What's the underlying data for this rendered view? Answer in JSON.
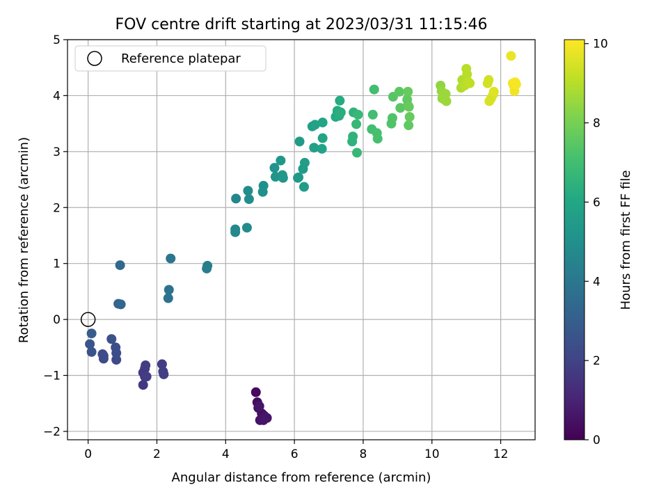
{
  "chart_data": {
    "type": "scatter",
    "title": "FOV centre drift starting at 2023/03/31 11:15:46",
    "xlabel": "Angular distance from reference (arcmin)",
    "ylabel": "Rotation from reference (arcmin)",
    "xlim": [
      -0.6,
      13.0
    ],
    "ylim": [
      -2.15,
      5.0
    ],
    "xticks": [
      0,
      2,
      4,
      6,
      8,
      10,
      12
    ],
    "yticks": [
      -2,
      -1,
      0,
      1,
      2,
      3,
      4,
      5
    ],
    "grid": true,
    "legend": {
      "placement": "top-left",
      "entries": [
        "Reference platepar"
      ]
    },
    "reference_point": {
      "x": 0,
      "y": 0,
      "label": "Reference platepar"
    },
    "colorbar": {
      "label": "Hours from first FF file",
      "min": 0,
      "max": 10.1,
      "ticks": [
        0,
        2,
        4,
        6,
        8,
        10
      ],
      "colormap": "viridis"
    },
    "points": [
      {
        "x": 4.88,
        "y": -1.3,
        "c": 0.3
      },
      {
        "x": 4.92,
        "y": -1.48,
        "c": 0.35
      },
      {
        "x": 4.95,
        "y": -1.58,
        "c": 0.4
      },
      {
        "x": 5.05,
        "y": -1.68,
        "c": 0.4
      },
      {
        "x": 5.12,
        "y": -1.72,
        "c": 0.45
      },
      {
        "x": 5.2,
        "y": -1.76,
        "c": 0.5
      },
      {
        "x": 5.0,
        "y": -1.8,
        "c": 0.5
      },
      {
        "x": 5.1,
        "y": -1.8,
        "c": 0.55
      },
      {
        "x": 5.15,
        "y": -1.75,
        "c": 0.6
      },
      {
        "x": 4.98,
        "y": -1.55,
        "c": 0.6
      },
      {
        "x": 1.6,
        "y": -1.17,
        "c": 1.6
      },
      {
        "x": 1.65,
        "y": -1.02,
        "c": 1.6
      },
      {
        "x": 1.6,
        "y": -0.95,
        "c": 1.7
      },
      {
        "x": 1.65,
        "y": -0.88,
        "c": 1.7
      },
      {
        "x": 1.67,
        "y": -0.82,
        "c": 1.8
      },
      {
        "x": 1.7,
        "y": -1.02,
        "c": 1.8
      },
      {
        "x": 2.15,
        "y": -0.8,
        "c": 1.8
      },
      {
        "x": 2.18,
        "y": -0.93,
        "c": 1.85
      },
      {
        "x": 2.2,
        "y": -0.98,
        "c": 1.85
      },
      {
        "x": 0.42,
        "y": -0.62,
        "c": 2.3
      },
      {
        "x": 0.45,
        "y": -0.7,
        "c": 2.3
      },
      {
        "x": 0.45,
        "y": -0.65,
        "c": 2.35
      },
      {
        "x": 0.82,
        "y": -0.72,
        "c": 2.3
      },
      {
        "x": 0.82,
        "y": -0.6,
        "c": 2.4
      },
      {
        "x": 0.8,
        "y": -0.5,
        "c": 2.4
      },
      {
        "x": 0.68,
        "y": -0.35,
        "c": 2.5
      },
      {
        "x": 0.1,
        "y": -0.58,
        "c": 2.6
      },
      {
        "x": 0.05,
        "y": -0.44,
        "c": 2.7
      },
      {
        "x": 0.1,
        "y": -0.25,
        "c": 2.9
      },
      {
        "x": 0.88,
        "y": 0.28,
        "c": 3.2
      },
      {
        "x": 0.95,
        "y": 0.27,
        "c": 3.3
      },
      {
        "x": 0.93,
        "y": 0.97,
        "c": 3.4
      },
      {
        "x": 2.33,
        "y": 0.38,
        "c": 3.8
      },
      {
        "x": 2.35,
        "y": 0.53,
        "c": 3.8
      },
      {
        "x": 2.4,
        "y": 1.09,
        "c": 3.9
      },
      {
        "x": 3.45,
        "y": 0.91,
        "c": 4.3
      },
      {
        "x": 3.47,
        "y": 0.96,
        "c": 4.3
      },
      {
        "x": 4.28,
        "y": 1.56,
        "c": 4.7
      },
      {
        "x": 4.28,
        "y": 1.61,
        "c": 4.7
      },
      {
        "x": 4.3,
        "y": 2.16,
        "c": 4.6
      },
      {
        "x": 4.62,
        "y": 1.64,
        "c": 4.8
      },
      {
        "x": 4.65,
        "y": 2.3,
        "c": 4.9
      },
      {
        "x": 4.68,
        "y": 2.15,
        "c": 4.9
      },
      {
        "x": 5.08,
        "y": 2.28,
        "c": 5.0
      },
      {
        "x": 5.1,
        "y": 2.39,
        "c": 5.0
      },
      {
        "x": 5.42,
        "y": 2.71,
        "c": 5.1
      },
      {
        "x": 5.45,
        "y": 2.55,
        "c": 5.2
      },
      {
        "x": 5.6,
        "y": 2.84,
        "c": 5.3
      },
      {
        "x": 5.65,
        "y": 2.58,
        "c": 5.3
      },
      {
        "x": 5.67,
        "y": 2.53,
        "c": 5.3
      },
      {
        "x": 6.12,
        "y": 2.54,
        "c": 5.4
      },
      {
        "x": 6.1,
        "y": 2.53,
        "c": 5.4
      },
      {
        "x": 6.15,
        "y": 3.18,
        "c": 5.5
      },
      {
        "x": 6.25,
        "y": 2.69,
        "c": 5.5
      },
      {
        "x": 6.28,
        "y": 2.37,
        "c": 5.5
      },
      {
        "x": 6.3,
        "y": 2.8,
        "c": 5.6
      },
      {
        "x": 6.52,
        "y": 3.45,
        "c": 5.7
      },
      {
        "x": 6.57,
        "y": 3.07,
        "c": 5.7
      },
      {
        "x": 6.6,
        "y": 3.48,
        "c": 5.8
      },
      {
        "x": 6.8,
        "y": 3.05,
        "c": 5.8
      },
      {
        "x": 6.82,
        "y": 3.24,
        "c": 5.9
      },
      {
        "x": 6.82,
        "y": 3.52,
        "c": 5.9
      },
      {
        "x": 7.2,
        "y": 3.62,
        "c": 6.1
      },
      {
        "x": 7.25,
        "y": 3.68,
        "c": 6.1
      },
      {
        "x": 7.25,
        "y": 3.73,
        "c": 6.2
      },
      {
        "x": 7.3,
        "y": 3.64,
        "c": 6.2
      },
      {
        "x": 7.32,
        "y": 3.91,
        "c": 6.2
      },
      {
        "x": 7.35,
        "y": 3.7,
        "c": 6.3
      },
      {
        "x": 7.68,
        "y": 3.18,
        "c": 6.5
      },
      {
        "x": 7.7,
        "y": 3.27,
        "c": 6.5
      },
      {
        "x": 7.72,
        "y": 3.7,
        "c": 6.5
      },
      {
        "x": 7.8,
        "y": 3.49,
        "c": 6.7
      },
      {
        "x": 7.82,
        "y": 2.98,
        "c": 6.7
      },
      {
        "x": 7.85,
        "y": 3.66,
        "c": 6.7
      },
      {
        "x": 8.25,
        "y": 3.4,
        "c": 7.0
      },
      {
        "x": 8.28,
        "y": 3.66,
        "c": 7.0
      },
      {
        "x": 8.32,
        "y": 4.11,
        "c": 7.0
      },
      {
        "x": 8.4,
        "y": 3.33,
        "c": 7.1
      },
      {
        "x": 8.42,
        "y": 3.23,
        "c": 7.1
      },
      {
        "x": 8.82,
        "y": 3.5,
        "c": 7.3
      },
      {
        "x": 8.85,
        "y": 3.6,
        "c": 7.3
      },
      {
        "x": 8.87,
        "y": 3.98,
        "c": 7.4
      },
      {
        "x": 9.05,
        "y": 4.07,
        "c": 7.5
      },
      {
        "x": 9.08,
        "y": 3.78,
        "c": 7.5
      },
      {
        "x": 9.28,
        "y": 3.93,
        "c": 7.6
      },
      {
        "x": 9.3,
        "y": 3.83,
        "c": 7.6
      },
      {
        "x": 9.3,
        "y": 4.07,
        "c": 7.7
      },
      {
        "x": 9.32,
        "y": 3.47,
        "c": 7.6
      },
      {
        "x": 9.33,
        "y": 3.8,
        "c": 7.7
      },
      {
        "x": 9.35,
        "y": 3.62,
        "c": 7.7
      },
      {
        "x": 10.25,
        "y": 4.18,
        "c": 8.4
      },
      {
        "x": 10.28,
        "y": 4.08,
        "c": 8.5
      },
      {
        "x": 10.3,
        "y": 3.95,
        "c": 8.5
      },
      {
        "x": 10.32,
        "y": 4.0,
        "c": 8.6
      },
      {
        "x": 10.38,
        "y": 3.92,
        "c": 8.6
      },
      {
        "x": 10.4,
        "y": 4.03,
        "c": 8.6
      },
      {
        "x": 10.42,
        "y": 3.9,
        "c": 8.6
      },
      {
        "x": 10.85,
        "y": 4.14,
        "c": 8.9
      },
      {
        "x": 10.88,
        "y": 4.28,
        "c": 8.9
      },
      {
        "x": 10.95,
        "y": 4.18,
        "c": 9.0
      },
      {
        "x": 11.0,
        "y": 4.48,
        "c": 9.0
      },
      {
        "x": 11.02,
        "y": 4.38,
        "c": 9.0
      },
      {
        "x": 11.05,
        "y": 4.25,
        "c": 9.1
      },
      {
        "x": 11.1,
        "y": 4.22,
        "c": 9.1
      },
      {
        "x": 11.62,
        "y": 4.22,
        "c": 9.4
      },
      {
        "x": 11.65,
        "y": 4.28,
        "c": 9.4
      },
      {
        "x": 11.67,
        "y": 3.9,
        "c": 9.5
      },
      {
        "x": 11.72,
        "y": 3.95,
        "c": 9.5
      },
      {
        "x": 11.78,
        "y": 4.02,
        "c": 9.5
      },
      {
        "x": 11.8,
        "y": 4.07,
        "c": 9.6
      },
      {
        "x": 12.3,
        "y": 4.71,
        "c": 9.8
      },
      {
        "x": 12.35,
        "y": 4.22,
        "c": 9.9
      },
      {
        "x": 12.38,
        "y": 4.18,
        "c": 9.9
      },
      {
        "x": 12.4,
        "y": 4.08,
        "c": 9.9
      },
      {
        "x": 12.42,
        "y": 4.24,
        "c": 10.0
      },
      {
        "x": 12.45,
        "y": 4.2,
        "c": 10.0
      }
    ]
  }
}
